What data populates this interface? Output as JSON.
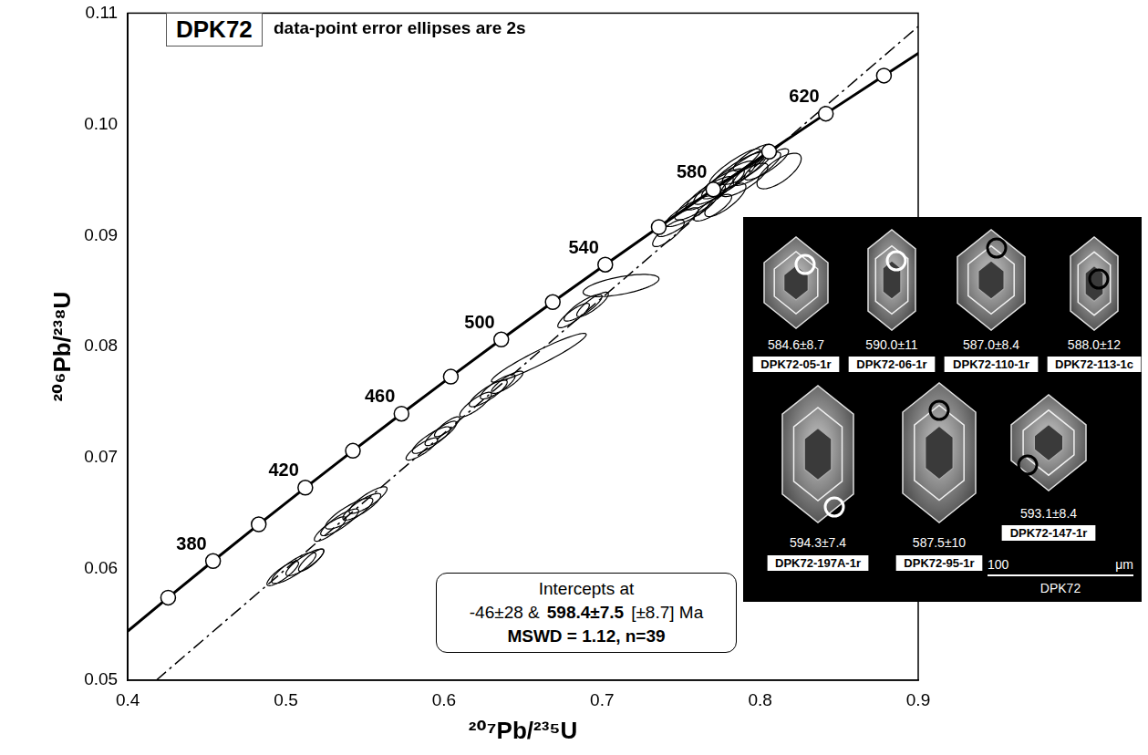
{
  "chart_data": {
    "type": "concordia",
    "title": "DPK72",
    "subtitle": "data-point error ellipses are 2s",
    "x_label": "²⁰⁷Pb/²³⁵U",
    "y_label": "²⁰⁶Pb/²³⁸U",
    "xlim": [
      0.4,
      0.9
    ],
    "xticks": [
      0.4,
      0.5,
      0.6,
      0.7,
      0.8,
      0.9
    ],
    "ylim": [
      0.05,
      0.11
    ],
    "yticks": [
      0.05,
      0.06,
      0.07,
      0.08,
      0.09,
      {
        "value": 0.1,
        "label": "0.10"
      },
      0.11
    ],
    "grid": false,
    "color": "#000000",
    "concordia": {
      "ages": [
        340,
        360,
        380,
        400,
        420,
        440,
        460,
        480,
        500,
        520,
        540,
        560,
        580,
        600,
        620,
        640,
        660
      ],
      "x": [
        0.39777,
        0.42552,
        0.45392,
        0.4828,
        0.51228,
        0.54238,
        0.57311,
        0.60433,
        0.63624,
        0.66881,
        0.70203,
        0.73588,
        0.7704,
        0.80566,
        0.84157,
        0.87831,
        0.91554
      ],
      "y": [
        0.05416,
        0.05743,
        0.06072,
        0.06402,
        0.06732,
        0.07064,
        0.07397,
        0.0773,
        0.08065,
        0.08401,
        0.08738,
        0.09076,
        0.09414,
        0.09754,
        0.10096,
        0.10438,
        0.10781
      ],
      "line_style": "solid"
    },
    "marker_ages": [
      360,
      380,
      400,
      420,
      440,
      460,
      480,
      500,
      520,
      540,
      560,
      580,
      600,
      620,
      640
    ],
    "labeled_ages": [
      380,
      420,
      460,
      500,
      540,
      580,
      620
    ],
    "discordia": {
      "x": [
        0.418,
        0.9
      ],
      "y": [
        0.05,
        0.1088
      ],
      "line_style": "dashdot"
    },
    "ellipses": [
      {
        "x": 0.786,
        "y": 0.0957,
        "sx": 0.018,
        "sy": 0.0018,
        "rho": 0.85
      },
      {
        "x": 0.792,
        "y": 0.0962,
        "sx": 0.016,
        "sy": 0.0016,
        "rho": 0.85
      },
      {
        "x": 0.798,
        "y": 0.096,
        "sx": 0.015,
        "sy": 0.0015,
        "rho": 0.85
      },
      {
        "x": 0.78,
        "y": 0.095,
        "sx": 0.017,
        "sy": 0.0017,
        "rho": 0.85
      },
      {
        "x": 0.774,
        "y": 0.0944,
        "sx": 0.016,
        "sy": 0.0016,
        "rho": 0.85
      },
      {
        "x": 0.768,
        "y": 0.0938,
        "sx": 0.015,
        "sy": 0.0015,
        "rho": 0.85
      },
      {
        "x": 0.762,
        "y": 0.093,
        "sx": 0.016,
        "sy": 0.0016,
        "rho": 0.85
      },
      {
        "x": 0.804,
        "y": 0.0964,
        "sx": 0.014,
        "sy": 0.0014,
        "rho": 0.85
      },
      {
        "x": 0.812,
        "y": 0.0958,
        "sx": 0.014,
        "sy": 0.0016,
        "rho": 0.7
      },
      {
        "x": 0.756,
        "y": 0.0922,
        "sx": 0.016,
        "sy": 0.0014,
        "rho": 0.85
      },
      {
        "x": 0.748,
        "y": 0.0912,
        "sx": 0.013,
        "sy": 0.0013,
        "rho": 0.85
      },
      {
        "x": 0.742,
        "y": 0.0902,
        "sx": 0.01,
        "sy": 0.0012,
        "rho": 0.8
      },
      {
        "x": 0.778,
        "y": 0.0932,
        "sx": 0.013,
        "sy": 0.0015,
        "rho": 0.8
      },
      {
        "x": 0.79,
        "y": 0.095,
        "sx": 0.015,
        "sy": 0.0015,
        "rho": 0.8
      },
      {
        "x": 0.795,
        "y": 0.097,
        "sx": 0.012,
        "sy": 0.0012,
        "rho": 0.85
      },
      {
        "x": 0.77,
        "y": 0.0925,
        "sx": 0.012,
        "sy": 0.0012,
        "rho": 0.8
      },
      {
        "x": 0.784,
        "y": 0.0962,
        "sx": 0.016,
        "sy": 0.0016,
        "rho": 0.9
      },
      {
        "x": 0.712,
        "y": 0.0855,
        "sx": 0.024,
        "sy": 0.001,
        "rho": 0.6
      },
      {
        "x": 0.688,
        "y": 0.0835,
        "sx": 0.012,
        "sy": 0.0012,
        "rho": 0.85
      },
      {
        "x": 0.694,
        "y": 0.0838,
        "sx": 0.01,
        "sy": 0.0011,
        "rho": 0.85
      },
      {
        "x": 0.682,
        "y": 0.0828,
        "sx": 0.01,
        "sy": 0.0011,
        "rho": 0.85
      },
      {
        "x": 0.66,
        "y": 0.079,
        "sx": 0.03,
        "sy": 0.0022,
        "rho": 0.95
      },
      {
        "x": 0.628,
        "y": 0.0758,
        "sx": 0.012,
        "sy": 0.0012,
        "rho": 0.85
      },
      {
        "x": 0.634,
        "y": 0.0764,
        "sx": 0.011,
        "sy": 0.0011,
        "rho": 0.85
      },
      {
        "x": 0.62,
        "y": 0.0748,
        "sx": 0.01,
        "sy": 0.0011,
        "rho": 0.85
      },
      {
        "x": 0.64,
        "y": 0.0768,
        "sx": 0.01,
        "sy": 0.001,
        "rho": 0.85
      },
      {
        "x": 0.592,
        "y": 0.0716,
        "sx": 0.012,
        "sy": 0.0012,
        "rho": 0.85
      },
      {
        "x": 0.598,
        "y": 0.0722,
        "sx": 0.01,
        "sy": 0.0011,
        "rho": 0.85
      },
      {
        "x": 0.586,
        "y": 0.0708,
        "sx": 0.01,
        "sy": 0.001,
        "rho": 0.85
      },
      {
        "x": 0.602,
        "y": 0.0728,
        "sx": 0.008,
        "sy": 0.0009,
        "rho": 0.85
      },
      {
        "x": 0.54,
        "y": 0.065,
        "sx": 0.015,
        "sy": 0.0014,
        "rho": 0.85
      },
      {
        "x": 0.548,
        "y": 0.0656,
        "sx": 0.012,
        "sy": 0.0012,
        "rho": 0.85
      },
      {
        "x": 0.534,
        "y": 0.0642,
        "sx": 0.012,
        "sy": 0.0012,
        "rho": 0.85
      },
      {
        "x": 0.528,
        "y": 0.0636,
        "sx": 0.01,
        "sy": 0.0011,
        "rho": 0.85
      },
      {
        "x": 0.552,
        "y": 0.0662,
        "sx": 0.012,
        "sy": 0.0012,
        "rho": 0.85
      },
      {
        "x": 0.505,
        "y": 0.0601,
        "sx": 0.014,
        "sy": 0.0014,
        "rho": 0.85
      },
      {
        "x": 0.512,
        "y": 0.0606,
        "sx": 0.012,
        "sy": 0.0012,
        "rho": 0.85
      },
      {
        "x": 0.498,
        "y": 0.0596,
        "sx": 0.01,
        "sy": 0.0011,
        "rho": 0.85
      },
      {
        "x": 0.516,
        "y": 0.0608,
        "sx": 0.008,
        "sy": 0.001,
        "rho": 0.85
      }
    ],
    "annotation": {
      "heading": "Intercepts at",
      "intercepts": [
        "-46±28 &",
        "598.4±7.5",
        "[±8.7]  Ma"
      ],
      "stats": "MSWD = 1.12,  n=39"
    }
  },
  "inset": {
    "grains": [
      {
        "age": "584.6±8.7",
        "id": "DPK72-05-1r"
      },
      {
        "age": "590.0±11",
        "id": "DPK72-06-1r"
      },
      {
        "age": "587.0±8.4",
        "id": "DPK72-110-1r"
      },
      {
        "age": "588.0±12",
        "id": "DPK72-113-1c"
      },
      {
        "age": "594.3±7.4",
        "id": "DPK72-197A-1r"
      },
      {
        "age": "587.5±10",
        "id": "DPK72-95-1r"
      },
      {
        "age": "593.1±8.4",
        "id": "DPK72-147-1r"
      }
    ],
    "scale_bar": "100",
    "scale_unit": "μm",
    "sample": "DPK72"
  }
}
